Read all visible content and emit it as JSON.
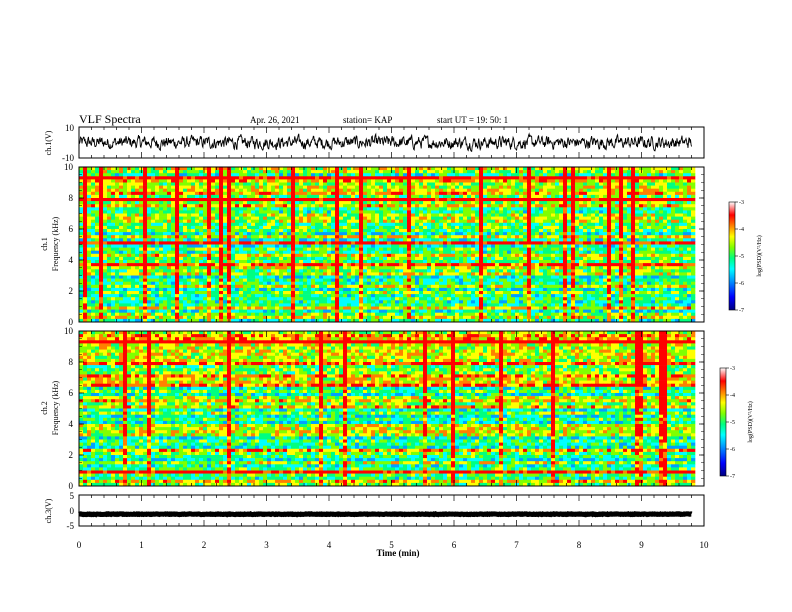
{
  "header": {
    "title": "VLF Spectra",
    "date": "Apr. 26, 2021",
    "station": "station= KAP",
    "start": "start  UT =   19: 50: 1"
  },
  "chart_data": [
    {
      "type": "line",
      "name": "ch1-waveform",
      "ylabel": "ch.1(V)",
      "ylim": [
        -10,
        10
      ],
      "yticks": [
        "10",
        "-10"
      ],
      "xlim": [
        0,
        10
      ],
      "x_end": 9.8,
      "baseline": 0,
      "amplitude": 4
    },
    {
      "type": "heatmap",
      "name": "ch1-spectrogram",
      "ylabel": "ch.1\nFrequency (kHz)",
      "ylim": [
        0,
        10
      ],
      "yticks": [
        "0",
        "2",
        "4",
        "6",
        "8",
        "10"
      ],
      "xlim": [
        0,
        10
      ],
      "x_end": 9.8,
      "colorbar": {
        "label": "log(PSD)(V²/Hz)",
        "range": [
          -7,
          -3
        ],
        "ticks": [
          "-3",
          "-4",
          "-5",
          "-6",
          "-7"
        ]
      }
    },
    {
      "type": "heatmap",
      "name": "ch2-spectrogram",
      "ylabel": "ch.2\nFrequency (kHz)",
      "ylim": [
        0,
        10
      ],
      "yticks": [
        "0",
        "2",
        "4",
        "6",
        "8",
        "10"
      ],
      "xlim": [
        0,
        10
      ],
      "x_end": 9.8,
      "colorbar": {
        "label": "log(PSD)(V²/Hz)",
        "range": [
          -7,
          -3
        ],
        "ticks": [
          "-3",
          "-4",
          "-5",
          "-6",
          "-7"
        ]
      }
    },
    {
      "type": "line",
      "name": "ch3-waveform",
      "ylabel": "ch.3(V)",
      "ylim": [
        -5,
        5
      ],
      "yticks": [
        "5",
        "0",
        "-5"
      ],
      "xlim": [
        0,
        10
      ],
      "x_end": 9.8,
      "baseline": -1.2,
      "amplitude": 0.2
    }
  ],
  "x_axis": {
    "label": "Time (min)",
    "ticks": [
      "0",
      "1",
      "2",
      "3",
      "4",
      "5",
      "6",
      "7",
      "8",
      "9",
      "10"
    ]
  },
  "colors": {
    "colormap": [
      "#000080",
      "#0000ff",
      "#00a0ff",
      "#00ffff",
      "#00ff80",
      "#80ff00",
      "#ffff00",
      "#ff8000",
      "#ff0000",
      "#ffffff"
    ]
  }
}
